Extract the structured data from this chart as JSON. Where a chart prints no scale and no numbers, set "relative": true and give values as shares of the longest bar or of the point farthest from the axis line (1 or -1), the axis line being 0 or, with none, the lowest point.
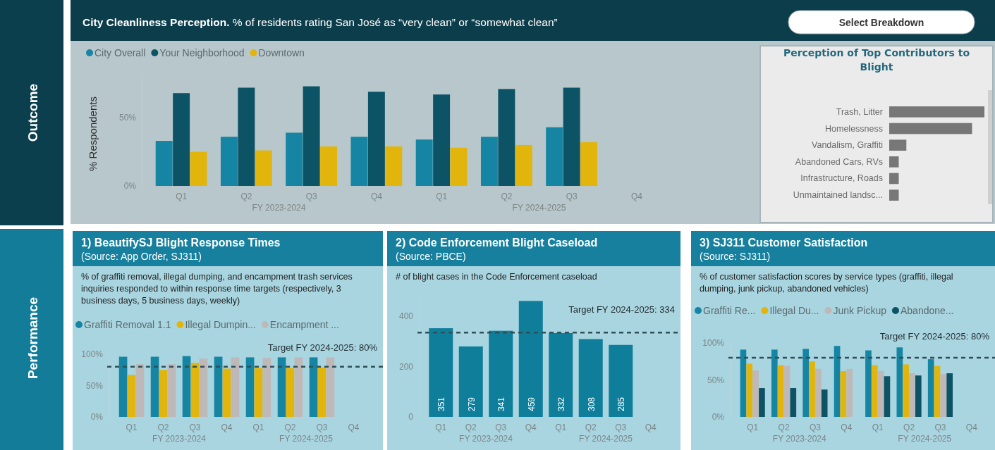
{
  "chart_data": [
    {
      "type": "bar",
      "title": "City Cleanliness Perception.",
      "subtitle": "% of residents rating San José as “very clean” or “somewhat clean”",
      "ylabel": "% Respondents",
      "categories": [
        "Q1",
        "Q2",
        "Q3",
        "Q4",
        "Q1",
        "Q2",
        "Q3",
        "Q4"
      ],
      "series": [
        {
          "name": "City Overall",
          "color": "#1585a3",
          "values": [
            33,
            36,
            39,
            36,
            34,
            36,
            43,
            null
          ]
        },
        {
          "name": "Your Neighborhood",
          "color": "#0c5366",
          "values": [
            68,
            72,
            73,
            69,
            67,
            71,
            72,
            null
          ]
        },
        {
          "name": "Downtown",
          "color": "#e2b50c",
          "values": [
            25,
            26,
            29,
            29,
            28,
            30,
            32,
            null
          ]
        }
      ],
      "ylim": [
        0,
        80
      ],
      "yticks": [
        {
          "value": 0,
          "label": "0%"
        },
        {
          "value": 50,
          "label": "50%"
        }
      ],
      "legend": "top left",
      "grid": false,
      "annotations": [
        "FY 2023-2024",
        "FY 2024-2025"
      ]
    },
    {
      "type": "bar",
      "orientation": "horizontal",
      "relative": true,
      "title": "Perception of Top Contributors to Blight",
      "categories": [
        "Trash, Litter",
        "Homelessness",
        "Vandalism, Graffiti",
        "Abandoned Cars, RVs",
        "Infrastructure, Roads",
        "Unmaintained landsc..."
      ],
      "values": [
        1,
        0.87,
        0.18,
        0.1,
        0.1,
        0.1
      ],
      "color": "#777777"
    },
    {
      "type": "bar",
      "title": "1) BeautifySJ Blight Response Times",
      "subtitle": "% of graffiti removal, illegal dumping, and encampment trash services inquiries responded to within response time targets (respectively, 3 business days, 5 business days, weekly)",
      "categories": [
        "Q1",
        "Q2",
        "Q3",
        "Q4",
        "Q1",
        "Q2",
        "Q3",
        "Q4"
      ],
      "series": [
        {
          "name": "Graffiti Removal 1.1",
          "color": "#1585a3",
          "values": [
            96,
            96,
            97,
            96,
            95,
            95,
            95,
            null
          ]
        },
        {
          "name": "Illegal Dumpin...",
          "color": "#e2b50c",
          "values": [
            67,
            75,
            86,
            77,
            78,
            78,
            79,
            null
          ]
        },
        {
          "name": "Encampment ...",
          "color": "#bfb8b8",
          "values": [
            84,
            84,
            93,
            95,
            94,
            95,
            95,
            null
          ]
        }
      ],
      "ylim": [
        0,
        100
      ],
      "yticks": [
        {
          "value": 0,
          "label": "0%"
        },
        {
          "value": 50,
          "label": "50%"
        },
        {
          "value": 100,
          "label": "100%"
        }
      ],
      "legend": "top left",
      "ref_lines": [
        {
          "axis": "y",
          "value": 80,
          "label": "Target FY 2024-2025: 80%",
          "line_style": "dashed",
          "color": "#2f4f57"
        }
      ],
      "annotations": [
        "(Source: App Order, SJ311)",
        "FY 2023-2024",
        "FY 2024-2025"
      ]
    },
    {
      "type": "bar",
      "title": "2) Code Enforcement Blight Caseload",
      "subtitle": "# of blight cases in the Code Enforcement caseload",
      "categories": [
        "Q1",
        "Q2",
        "Q3",
        "Q4",
        "Q1",
        "Q2",
        "Q3",
        "Q4"
      ],
      "values": [
        351,
        279,
        341,
        459,
        332,
        308,
        285,
        null
      ],
      "color": "#0e7e9b",
      "data_labels": true,
      "ylim": [
        0,
        460
      ],
      "yticks": [
        0,
        200,
        400
      ],
      "ref_lines": [
        {
          "axis": "y",
          "value": 334,
          "label": "Target FY 2024-2025: 334",
          "line_style": "dashed",
          "color": "#2f4f57"
        }
      ],
      "annotations": [
        "(Source: PBCE)",
        "FY 2023-2024",
        "FY 2024-2025"
      ]
    },
    {
      "type": "bar",
      "title": "3) SJ311 Customer Satisfaction",
      "subtitle": "% of customer satisfaction scores by service types (graffiti, illegal dumping, junk pickup, abandoned vehicles)",
      "categories": [
        "Q1",
        "Q2",
        "Q3",
        "Q4",
        "Q1",
        "Q2",
        "Q3",
        "Q4"
      ],
      "series": [
        {
          "name": "Graffiti Re...",
          "color": "#1585a3",
          "values": [
            91,
            91,
            92,
            96,
            90,
            94,
            78,
            null
          ]
        },
        {
          "name": "Illegal Du...",
          "color": "#e2b50c",
          "values": [
            72,
            70,
            75,
            62,
            70,
            71,
            69,
            null
          ]
        },
        {
          "name": "Junk Pickup",
          "color": "#bfb8b8",
          "values": [
            63,
            69,
            65,
            65,
            62,
            59,
            58,
            null
          ]
        },
        {
          "name": "Abandone...",
          "color": "#0c5366",
          "values": [
            39,
            39,
            37,
            null,
            55,
            56,
            59,
            null
          ]
        }
      ],
      "ylim": [
        0,
        100
      ],
      "yticks": [
        {
          "value": 0,
          "label": "0%"
        },
        {
          "value": 50,
          "label": "50%"
        },
        {
          "value": 100,
          "label": "100%"
        }
      ],
      "legend": "top left",
      "ref_lines": [
        {
          "axis": "y",
          "value": 80,
          "label": "Target FY 2024-2025: 80%",
          "line_style": "dashed",
          "color": "#2f4f57"
        }
      ],
      "annotations": [
        "(Source: SJ311)",
        "FY 2023-2024",
        "FY 2024-2025"
      ]
    },
    {
      "type": "other",
      "annotations": [
        "Outcome",
        "Performance",
        "Select Breakdown"
      ]
    }
  ]
}
